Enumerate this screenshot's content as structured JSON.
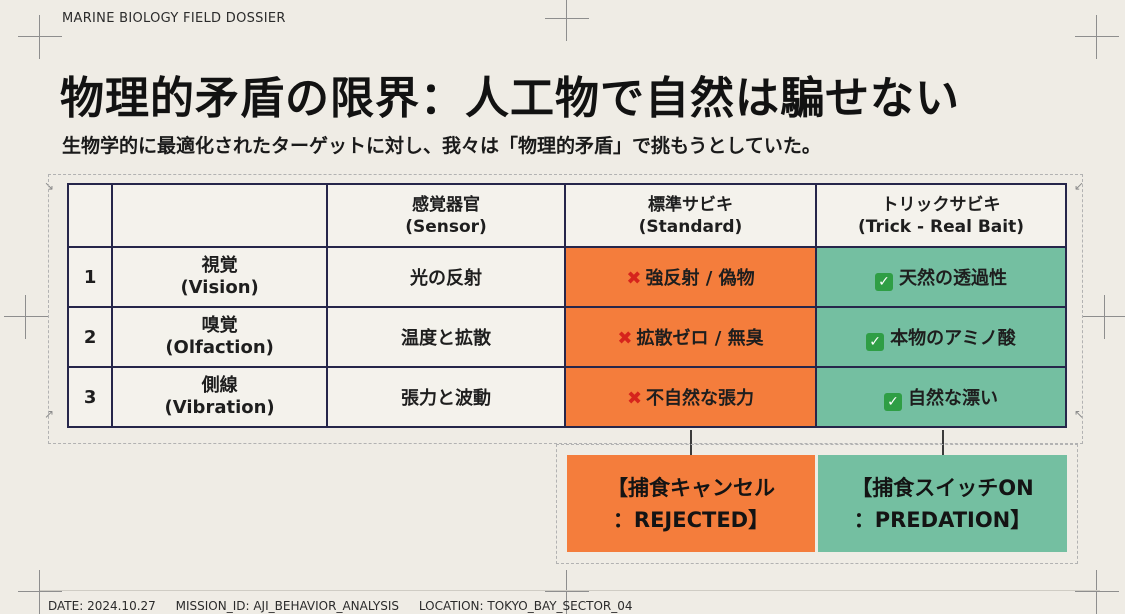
{
  "header": {
    "label": "MARINE BIOLOGY FIELD DOSSIER"
  },
  "title": "物理的矛盾の限界：人工物で自然は騙せない",
  "subtitle": "生物学的に最適化されたターゲットに対し、我々は「物理的矛盾」で挑もうとしていた。",
  "table": {
    "columns": [
      {
        "line1": "",
        "line2": ""
      },
      {
        "line1": "",
        "line2": ""
      },
      {
        "line1": "感覚器官",
        "line2": "(Sensor)"
      },
      {
        "line1": "標準サビキ",
        "line2": "(Standard)"
      },
      {
        "line1": "トリックサビキ",
        "line2": "(Trick - Real Bait)"
      }
    ],
    "rows": [
      {
        "num": "1",
        "sense": "視覚",
        "sense_en": "(Vision)",
        "organ": "光の反射",
        "standard": "強反射 / 偽物",
        "trick": "天然の透過性"
      },
      {
        "num": "2",
        "sense": "嗅覚",
        "sense_en": "(Olfaction)",
        "organ": "温度と拡散",
        "standard": "拡散ゼロ / 無臭",
        "trick": "本物のアミノ酸"
      },
      {
        "num": "3",
        "sense": "側線",
        "sense_en": "(Vibration)",
        "organ": "張力と波動",
        "standard": "不自然な張力",
        "trick": "自然な漂い"
      }
    ],
    "standard_icon": "cross-mark-icon",
    "trick_icon": "check-mark-icon"
  },
  "results": {
    "reject": {
      "line1": "【捕食キャンセル",
      "line2": "：REJECTED】"
    },
    "predation": {
      "line1": "【捕食スイッチON",
      "line2": "：PREDATION】"
    }
  },
  "footer": {
    "date": "DATE: 2024.10.27",
    "mission": "MISSION_ID: AJI_BEHAVIOR_ANALYSIS",
    "location": "LOCATION: TOKYO_BAY_SECTOR_04"
  },
  "colors": {
    "background": "#efece5",
    "standard_fill": "#f47d3c",
    "trick_fill": "#74bfa1",
    "grid_line": "#26264a",
    "cross_mark": "#d6241c",
    "check_mark": "#2f9e45"
  }
}
